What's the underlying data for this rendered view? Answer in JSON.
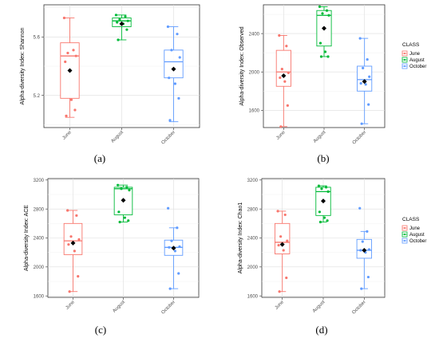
{
  "chart_data": [
    {
      "type": "box",
      "panel_label": "(a)",
      "ylabel": "Alpha-diversity Index: Shannon",
      "categories": [
        "June",
        "August",
        "October"
      ],
      "yticks": [
        5.2,
        5.6
      ],
      "ylim": [
        4.98,
        5.82
      ],
      "colors": [
        "#F8766D",
        "#00BA38",
        "#619CFF"
      ],
      "boxes": [
        {
          "min": 5.05,
          "q1": 5.18,
          "median": 5.47,
          "q3": 5.56,
          "max": 5.73,
          "mean": 5.37
        },
        {
          "min": 5.58,
          "q1": 5.67,
          "median": 5.71,
          "q3": 5.73,
          "max": 5.75,
          "mean": 5.69
        },
        {
          "min": 5.02,
          "q1": 5.32,
          "median": 5.43,
          "q3": 5.51,
          "max": 5.67,
          "mean": 5.38
        }
      ],
      "points": [
        [
          5.73,
          5.51,
          5.49,
          5.47,
          5.43,
          5.17,
          5.1,
          5.06
        ],
        [
          5.75,
          5.74,
          5.72,
          5.71,
          5.7,
          5.69,
          5.65,
          5.58
        ],
        [
          5.67,
          5.62,
          5.51,
          5.46,
          5.32,
          5.28,
          5.18,
          5.03
        ]
      ],
      "legend": null
    },
    {
      "type": "box",
      "panel_label": "(b)",
      "ylabel": "Alpha-diversity Index: Observed",
      "categories": [
        "June",
        "August",
        "October"
      ],
      "yticks": [
        1600,
        2000,
        2400
      ],
      "ylim": [
        1420,
        2700
      ],
      "colors": [
        "#F8766D",
        "#00BA38",
        "#619CFF"
      ],
      "boxes": [
        {
          "min": 1430,
          "q1": 1850,
          "median": 2000,
          "q3": 2225,
          "max": 2380,
          "mean": 1960
        },
        {
          "min": 2160,
          "q1": 2270,
          "median": 2590,
          "q3": 2640,
          "max": 2680,
          "mean": 2455
        },
        {
          "min": 1460,
          "q1": 1800,
          "median": 1920,
          "q3": 2060,
          "max": 2350,
          "mean": 1900
        }
      ],
      "points": [
        [
          2380,
          2270,
          2030,
          1990,
          1940,
          1900,
          1650,
          1430
        ],
        [
          2680,
          2640,
          2610,
          2590,
          2300,
          2210,
          2160,
          2160
        ],
        [
          2350,
          2130,
          2040,
          1950,
          1880,
          1870,
          1660,
          1460
        ]
      ],
      "legend": {
        "title": "CLASS",
        "entries": [
          "June",
          "August",
          "October"
        ]
      }
    },
    {
      "type": "box",
      "panel_label": "(c)",
      "ylabel": "Alpha-diversity Index: ACE",
      "categories": [
        "June",
        "August",
        "October"
      ],
      "yticks": [
        1600,
        2000,
        2400,
        2800,
        3200
      ],
      "ylim": [
        1580,
        3220
      ],
      "colors": [
        "#F8766D",
        "#00BA38",
        "#619CFF"
      ],
      "boxes": [
        {
          "min": 1660,
          "q1": 2170,
          "median": 2360,
          "q3": 2600,
          "max": 2780,
          "mean": 2330
        },
        {
          "min": 2620,
          "q1": 2720,
          "median": 3080,
          "q3": 3100,
          "max": 3130,
          "mean": 2920
        },
        {
          "min": 1700,
          "q1": 2160,
          "median": 2270,
          "q3": 2370,
          "max": 2540,
          "mean": 2260
        }
      ],
      "points": [
        [
          2780,
          2710,
          2420,
          2380,
          2310,
          2220,
          1870,
          1660
        ],
        [
          3130,
          3100,
          3080,
          3060,
          2760,
          2680,
          2640,
          2620
        ],
        [
          2810,
          2540,
          2360,
          2280,
          2270,
          2220,
          1910,
          1700
        ]
      ],
      "legend": null
    },
    {
      "type": "box",
      "panel_label": "(d)",
      "ylabel": "Alpha-diversity Index: Chao1",
      "categories": [
        "June",
        "August",
        "October"
      ],
      "yticks": [
        1600,
        2000,
        2400,
        2800,
        3200
      ],
      "ylim": [
        1580,
        3220
      ],
      "colors": [
        "#F8766D",
        "#00BA38",
        "#619CFF"
      ],
      "boxes": [
        {
          "min": 1660,
          "q1": 2180,
          "median": 2340,
          "q3": 2600,
          "max": 2770,
          "mean": 2310
        },
        {
          "min": 2620,
          "q1": 2710,
          "median": 3040,
          "q3": 3100,
          "max": 3120,
          "mean": 2910
        },
        {
          "min": 1700,
          "q1": 2120,
          "median": 2230,
          "q3": 2380,
          "max": 2490,
          "mean": 2230
        }
      ],
      "points": [
        [
          2770,
          2720,
          2420,
          2360,
          2300,
          2230,
          1850,
          1660
        ],
        [
          3120,
          3100,
          3080,
          3040,
          2760,
          2680,
          2640,
          2620
        ],
        [
          2810,
          2490,
          2350,
          2240,
          2230,
          2200,
          1860,
          1700
        ]
      ],
      "legend": {
        "title": "CLASS",
        "entries": [
          "June",
          "August",
          "October"
        ]
      }
    }
  ]
}
